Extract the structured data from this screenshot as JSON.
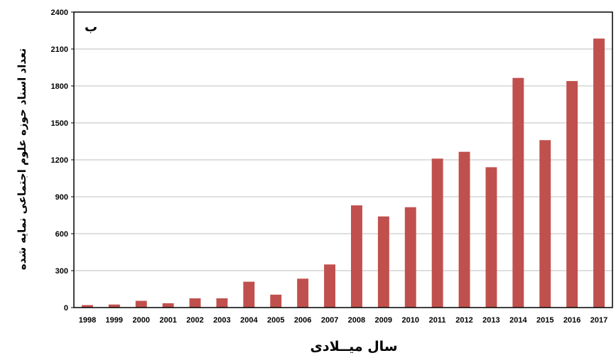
{
  "chart_data": {
    "type": "bar",
    "panel_label": "ب",
    "xlabel": "سال میــلادی",
    "ylabel": "تعداد اسناد حوزه علوم اجتماعی نمایه شده",
    "ylim": [
      0,
      2400
    ],
    "yticks": [
      0,
      300,
      600,
      900,
      1200,
      1500,
      1800,
      2100,
      2400
    ],
    "grid": true,
    "bar_color": "#C0504D",
    "categories": [
      "1998",
      "1999",
      "2000",
      "2001",
      "2002",
      "2003",
      "2004",
      "2005",
      "2006",
      "2007",
      "2008",
      "2009",
      "2010",
      "2011",
      "2012",
      "2013",
      "2014",
      "2015",
      "2016",
      "2017"
    ],
    "values": [
      20,
      25,
      55,
      35,
      75,
      75,
      210,
      105,
      235,
      350,
      830,
      740,
      815,
      1210,
      1265,
      1140,
      1865,
      1360,
      1840,
      2185
    ]
  }
}
